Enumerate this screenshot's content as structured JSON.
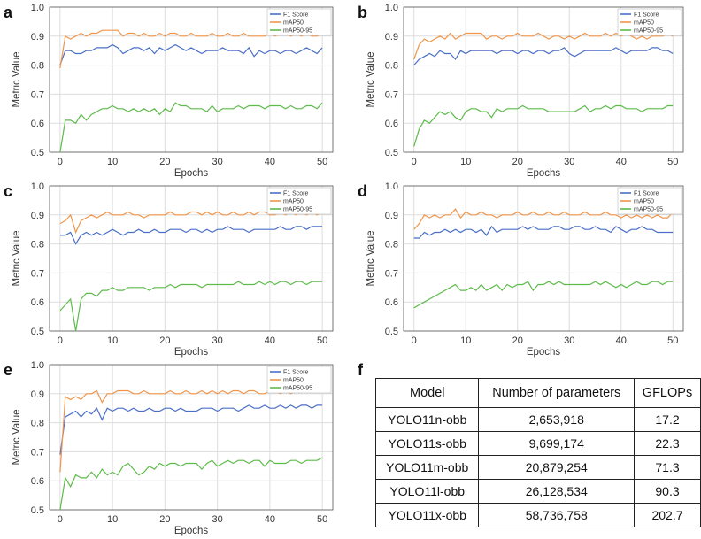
{
  "panels": [
    {
      "letter": "a"
    },
    {
      "letter": "b"
    },
    {
      "letter": "c"
    },
    {
      "letter": "d"
    },
    {
      "letter": "e"
    },
    {
      "letter": "f"
    }
  ],
  "chart_data": [
    {
      "type": "line",
      "panel": "a",
      "xlabel": "Epochs",
      "ylabel": "Metric Value",
      "xlim": [
        -2,
        52
      ],
      "ylim": [
        0.5,
        1.0
      ],
      "xticks": [
        0,
        10,
        20,
        30,
        40,
        50
      ],
      "yticks": [
        0.5,
        0.6,
        0.7,
        0.8,
        0.9,
        1.0
      ],
      "grid": true,
      "legend_position": "top-right",
      "x_start": 0,
      "series": [
        {
          "name": "F1 Score",
          "color": "#4a6fc7",
          "values": [
            0.8,
            0.85,
            0.85,
            0.84,
            0.84,
            0.85,
            0.85,
            0.86,
            0.86,
            0.86,
            0.87,
            0.86,
            0.84,
            0.85,
            0.86,
            0.86,
            0.85,
            0.86,
            0.84,
            0.86,
            0.85,
            0.86,
            0.87,
            0.86,
            0.85,
            0.86,
            0.85,
            0.84,
            0.85,
            0.85,
            0.85,
            0.86,
            0.85,
            0.85,
            0.85,
            0.84,
            0.86,
            0.83,
            0.85,
            0.84,
            0.85,
            0.85,
            0.84,
            0.85,
            0.85,
            0.84,
            0.85,
            0.86,
            0.85,
            0.84,
            0.86
          ]
        },
        {
          "name": "mAP50",
          "color": "#f0954a",
          "values": [
            0.79,
            0.9,
            0.89,
            0.9,
            0.91,
            0.9,
            0.91,
            0.91,
            0.92,
            0.92,
            0.92,
            0.92,
            0.9,
            0.91,
            0.91,
            0.9,
            0.91,
            0.9,
            0.9,
            0.91,
            0.9,
            0.91,
            0.91,
            0.9,
            0.9,
            0.91,
            0.9,
            0.9,
            0.9,
            0.91,
            0.9,
            0.9,
            0.91,
            0.9,
            0.9,
            0.91,
            0.9,
            0.9,
            0.9,
            0.9,
            0.91,
            0.9,
            0.91,
            0.91,
            0.9,
            0.91,
            0.9,
            0.91,
            0.9,
            0.9,
            0.91
          ]
        },
        {
          "name": "mAP50-95",
          "color": "#5dbb4a",
          "values": [
            0.5,
            0.61,
            0.61,
            0.6,
            0.63,
            0.61,
            0.63,
            0.64,
            0.65,
            0.65,
            0.66,
            0.65,
            0.65,
            0.64,
            0.65,
            0.64,
            0.65,
            0.64,
            0.65,
            0.63,
            0.65,
            0.64,
            0.67,
            0.66,
            0.66,
            0.65,
            0.65,
            0.65,
            0.64,
            0.66,
            0.64,
            0.65,
            0.65,
            0.65,
            0.66,
            0.65,
            0.66,
            0.66,
            0.66,
            0.65,
            0.66,
            0.66,
            0.66,
            0.65,
            0.66,
            0.65,
            0.65,
            0.66,
            0.66,
            0.65,
            0.67
          ]
        }
      ]
    },
    {
      "type": "line",
      "panel": "b",
      "xlabel": "Epochs",
      "ylabel": "Metric Value",
      "xlim": [
        -2,
        52
      ],
      "ylim": [
        0.5,
        1.0
      ],
      "xticks": [
        0,
        10,
        20,
        30,
        40,
        50
      ],
      "yticks": [
        0.5,
        0.6,
        0.7,
        0.8,
        0.9,
        1.0
      ],
      "grid": true,
      "legend_position": "top-right",
      "x_start": 0,
      "series": [
        {
          "name": "F1 Score",
          "color": "#4a6fc7",
          "values": [
            0.8,
            0.82,
            0.83,
            0.84,
            0.83,
            0.85,
            0.84,
            0.84,
            0.82,
            0.85,
            0.84,
            0.85,
            0.85,
            0.85,
            0.85,
            0.85,
            0.84,
            0.85,
            0.85,
            0.85,
            0.84,
            0.85,
            0.85,
            0.84,
            0.85,
            0.85,
            0.84,
            0.85,
            0.85,
            0.86,
            0.84,
            0.83,
            0.84,
            0.85,
            0.85,
            0.85,
            0.85,
            0.85,
            0.85,
            0.86,
            0.85,
            0.84,
            0.85,
            0.85,
            0.85,
            0.85,
            0.86,
            0.86,
            0.85,
            0.85,
            0.84
          ]
        },
        {
          "name": "mAP50",
          "color": "#f0954a",
          "values": [
            0.82,
            0.87,
            0.89,
            0.88,
            0.89,
            0.9,
            0.89,
            0.91,
            0.89,
            0.9,
            0.91,
            0.91,
            0.91,
            0.91,
            0.89,
            0.9,
            0.9,
            0.89,
            0.9,
            0.9,
            0.91,
            0.9,
            0.9,
            0.9,
            0.91,
            0.9,
            0.89,
            0.9,
            0.9,
            0.89,
            0.9,
            0.89,
            0.9,
            0.91,
            0.9,
            0.9,
            0.9,
            0.91,
            0.9,
            0.91,
            0.9,
            0.91,
            0.9,
            0.89,
            0.9,
            0.89,
            0.9,
            0.9,
            0.9,
            0.91,
            0.9
          ]
        },
        {
          "name": "mAP50-95",
          "color": "#5dbb4a",
          "values": [
            0.52,
            0.58,
            0.61,
            0.6,
            0.62,
            0.64,
            0.63,
            0.64,
            0.62,
            0.61,
            0.64,
            0.65,
            0.65,
            0.64,
            0.64,
            0.62,
            0.65,
            0.64,
            0.65,
            0.65,
            0.65,
            0.66,
            0.65,
            0.65,
            0.65,
            0.65,
            0.64,
            0.64,
            0.64,
            0.64,
            0.64,
            0.64,
            0.65,
            0.66,
            0.64,
            0.65,
            0.65,
            0.66,
            0.65,
            0.66,
            0.66,
            0.65,
            0.65,
            0.65,
            0.64,
            0.65,
            0.65,
            0.65,
            0.65,
            0.66,
            0.66
          ]
        }
      ]
    },
    {
      "type": "line",
      "panel": "c",
      "xlabel": "Epochs",
      "ylabel": "Metric Value",
      "xlim": [
        -2,
        52
      ],
      "ylim": [
        0.5,
        1.0
      ],
      "xticks": [
        0,
        10,
        20,
        30,
        40,
        50
      ],
      "yticks": [
        0.5,
        0.6,
        0.7,
        0.8,
        0.9,
        1.0
      ],
      "grid": true,
      "legend_position": "top-right",
      "x_start": 0,
      "series": [
        {
          "name": "F1 Score",
          "color": "#4a6fc7",
          "values": [
            0.83,
            0.83,
            0.84,
            0.8,
            0.83,
            0.84,
            0.83,
            0.84,
            0.83,
            0.84,
            0.85,
            0.84,
            0.83,
            0.84,
            0.84,
            0.85,
            0.84,
            0.84,
            0.85,
            0.84,
            0.84,
            0.85,
            0.85,
            0.85,
            0.84,
            0.85,
            0.85,
            0.84,
            0.85,
            0.84,
            0.85,
            0.85,
            0.86,
            0.85,
            0.85,
            0.85,
            0.84,
            0.85,
            0.85,
            0.85,
            0.85,
            0.85,
            0.86,
            0.85,
            0.85,
            0.86,
            0.86,
            0.85,
            0.86,
            0.86,
            0.86
          ]
        },
        {
          "name": "mAP50",
          "color": "#f0954a",
          "values": [
            0.87,
            0.88,
            0.9,
            0.84,
            0.88,
            0.89,
            0.9,
            0.89,
            0.9,
            0.91,
            0.9,
            0.9,
            0.9,
            0.91,
            0.9,
            0.9,
            0.89,
            0.9,
            0.9,
            0.9,
            0.9,
            0.91,
            0.9,
            0.9,
            0.9,
            0.91,
            0.91,
            0.9,
            0.91,
            0.9,
            0.91,
            0.9,
            0.9,
            0.91,
            0.9,
            0.9,
            0.91,
            0.9,
            0.91,
            0.91,
            0.9,
            0.9,
            0.91,
            0.9,
            0.91,
            0.9,
            0.91,
            0.9,
            0.91,
            0.9,
            0.91
          ]
        },
        {
          "name": "mAP50-95",
          "color": "#5dbb4a",
          "values": [
            0.57,
            0.59,
            0.61,
            0.5,
            0.61,
            0.63,
            0.63,
            0.62,
            0.64,
            0.64,
            0.65,
            0.64,
            0.64,
            0.65,
            0.65,
            0.65,
            0.65,
            0.64,
            0.65,
            0.65,
            0.65,
            0.66,
            0.65,
            0.66,
            0.66,
            0.66,
            0.66,
            0.65,
            0.66,
            0.66,
            0.66,
            0.66,
            0.66,
            0.66,
            0.67,
            0.66,
            0.66,
            0.66,
            0.67,
            0.66,
            0.67,
            0.66,
            0.67,
            0.67,
            0.66,
            0.67,
            0.67,
            0.66,
            0.67,
            0.67,
            0.67
          ]
        }
      ]
    },
    {
      "type": "line",
      "panel": "d",
      "xlabel": "Epochs",
      "ylabel": "Metric Value",
      "xlim": [
        -2,
        52
      ],
      "ylim": [
        0.5,
        1.0
      ],
      "xticks": [
        0,
        10,
        20,
        30,
        40,
        50
      ],
      "yticks": [
        0.5,
        0.6,
        0.7,
        0.8,
        0.9,
        1.0
      ],
      "grid": true,
      "legend_position": "top-right",
      "x_start": 0,
      "series": [
        {
          "name": "F1 Score",
          "color": "#4a6fc7",
          "values": [
            0.82,
            0.82,
            0.84,
            0.83,
            0.84,
            0.84,
            0.85,
            0.84,
            0.85,
            0.84,
            0.85,
            0.85,
            0.84,
            0.85,
            0.83,
            0.86,
            0.84,
            0.85,
            0.85,
            0.85,
            0.85,
            0.86,
            0.85,
            0.86,
            0.85,
            0.85,
            0.85,
            0.86,
            0.86,
            0.85,
            0.85,
            0.86,
            0.86,
            0.85,
            0.85,
            0.86,
            0.85,
            0.85,
            0.84,
            0.86,
            0.85,
            0.84,
            0.85,
            0.85,
            0.86,
            0.85,
            0.85,
            0.84,
            0.84,
            0.84,
            0.84
          ]
        },
        {
          "name": "mAP50",
          "color": "#f0954a",
          "values": [
            0.85,
            0.87,
            0.9,
            0.89,
            0.9,
            0.89,
            0.9,
            0.9,
            0.92,
            0.89,
            0.91,
            0.9,
            0.9,
            0.91,
            0.9,
            0.9,
            0.89,
            0.9,
            0.9,
            0.9,
            0.91,
            0.9,
            0.9,
            0.91,
            0.9,
            0.9,
            0.91,
            0.9,
            0.9,
            0.91,
            0.9,
            0.9,
            0.9,
            0.91,
            0.9,
            0.9,
            0.9,
            0.91,
            0.9,
            0.9,
            0.89,
            0.9,
            0.89,
            0.9,
            0.89,
            0.9,
            0.89,
            0.9,
            0.89,
            0.89,
            0.91
          ]
        },
        {
          "name": "mAP50-95",
          "color": "#5dbb4a",
          "values": [
            0.58,
            0.59,
            0.6,
            0.61,
            0.62,
            0.63,
            0.64,
            0.65,
            0.66,
            0.64,
            0.64,
            0.65,
            0.64,
            0.66,
            0.64,
            0.65,
            0.66,
            0.64,
            0.66,
            0.65,
            0.66,
            0.66,
            0.67,
            0.64,
            0.66,
            0.66,
            0.67,
            0.66,
            0.67,
            0.66,
            0.66,
            0.66,
            0.66,
            0.66,
            0.66,
            0.67,
            0.66,
            0.67,
            0.66,
            0.65,
            0.66,
            0.65,
            0.66,
            0.67,
            0.66,
            0.66,
            0.67,
            0.67,
            0.66,
            0.67,
            0.67
          ]
        }
      ]
    },
    {
      "type": "line",
      "panel": "e",
      "xlabel": "Epochs",
      "ylabel": "Metric Value",
      "xlim": [
        -2,
        52
      ],
      "ylim": [
        0.5,
        1.0
      ],
      "xticks": [
        0,
        10,
        20,
        30,
        40,
        50
      ],
      "yticks": [
        0.5,
        0.6,
        0.7,
        0.8,
        0.9,
        1.0
      ],
      "grid": true,
      "legend_position": "top-right",
      "x_start": 0,
      "series": [
        {
          "name": "F1 Score",
          "color": "#4a6fc7",
          "values": [
            0.69,
            0.82,
            0.83,
            0.84,
            0.82,
            0.84,
            0.83,
            0.85,
            0.81,
            0.85,
            0.84,
            0.85,
            0.85,
            0.84,
            0.85,
            0.84,
            0.84,
            0.85,
            0.84,
            0.84,
            0.85,
            0.85,
            0.84,
            0.85,
            0.84,
            0.84,
            0.84,
            0.85,
            0.85,
            0.85,
            0.84,
            0.85,
            0.85,
            0.85,
            0.84,
            0.85,
            0.86,
            0.85,
            0.85,
            0.86,
            0.85,
            0.85,
            0.86,
            0.85,
            0.86,
            0.85,
            0.86,
            0.86,
            0.85,
            0.86,
            0.86
          ]
        },
        {
          "name": "mAP50",
          "color": "#f0954a",
          "values": [
            0.63,
            0.89,
            0.88,
            0.89,
            0.88,
            0.9,
            0.9,
            0.91,
            0.87,
            0.9,
            0.9,
            0.91,
            0.91,
            0.91,
            0.9,
            0.9,
            0.91,
            0.9,
            0.9,
            0.9,
            0.9,
            0.91,
            0.9,
            0.9,
            0.91,
            0.9,
            0.9,
            0.91,
            0.9,
            0.91,
            0.9,
            0.91,
            0.9,
            0.91,
            0.91,
            0.9,
            0.91,
            0.91,
            0.9,
            0.9,
            0.91,
            0.91,
            0.9,
            0.91,
            0.9,
            0.91,
            0.91,
            0.91,
            0.91,
            0.91,
            0.91
          ]
        },
        {
          "name": "mAP50-95",
          "color": "#5dbb4a",
          "values": [
            0.5,
            0.61,
            0.58,
            0.62,
            0.61,
            0.61,
            0.63,
            0.61,
            0.64,
            0.62,
            0.63,
            0.62,
            0.65,
            0.66,
            0.64,
            0.62,
            0.63,
            0.65,
            0.64,
            0.66,
            0.65,
            0.66,
            0.66,
            0.65,
            0.66,
            0.66,
            0.66,
            0.64,
            0.66,
            0.67,
            0.65,
            0.66,
            0.67,
            0.66,
            0.67,
            0.67,
            0.66,
            0.67,
            0.67,
            0.65,
            0.67,
            0.66,
            0.66,
            0.66,
            0.67,
            0.67,
            0.66,
            0.67,
            0.67,
            0.67,
            0.68
          ]
        }
      ]
    },
    {
      "type": "table",
      "panel": "f",
      "headers": [
        "Model",
        "Number of parameters",
        "GFLOPs"
      ],
      "rows": [
        [
          "YOLO11n-obb",
          "2,653,918",
          "17.2"
        ],
        [
          "YOLO11s-obb",
          "9,699,174",
          "22.3"
        ],
        [
          "YOLO11m-obb",
          "20,879,254",
          "71.3"
        ],
        [
          "YOLO11l-obb",
          "26,128,534",
          "90.3"
        ],
        [
          "YOLO11x-obb",
          "58,736,758",
          "202.7"
        ]
      ]
    }
  ]
}
